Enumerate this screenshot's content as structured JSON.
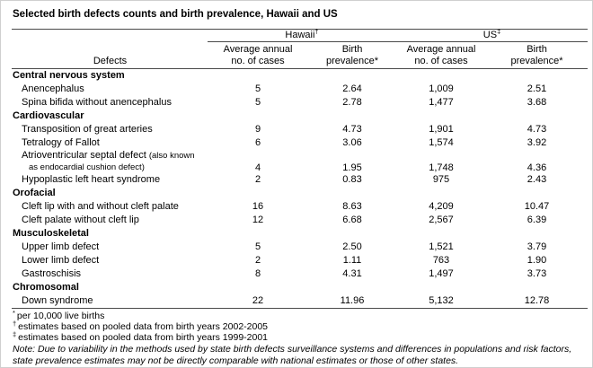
{
  "title": "Selected birth defects counts and birth prevalence, Hawaii and US",
  "table": {
    "defects_header": "Defects",
    "groups": [
      {
        "label": "Hawaii",
        "marker": "†"
      },
      {
        "label": "US",
        "marker": "‡"
      }
    ],
    "sub_headers": {
      "cases_line1": "Average annual",
      "cases_line2": "no. of cases",
      "prev_line1": "Birth",
      "prev_line2": "prevalence*"
    },
    "sections": [
      {
        "category": "Central nervous system",
        "rows": [
          {
            "defect": "Anencephalus",
            "hi_cases": "5",
            "hi_prev": "2.64",
            "us_cases": "1,009",
            "us_prev": "2.51"
          },
          {
            "defect": "Spina bifida without anencephalus",
            "hi_cases": "5",
            "hi_prev": "2.78",
            "us_cases": "1,477",
            "us_prev": "3.68"
          }
        ]
      },
      {
        "category": "Cardiovascular",
        "rows": [
          {
            "defect": "Transposition of great arteries",
            "hi_cases": "9",
            "hi_prev": "4.73",
            "us_cases": "1,901",
            "us_prev": "4.73"
          },
          {
            "defect": "Tetralogy of Fallot",
            "hi_cases": "6",
            "hi_prev": "3.06",
            "us_cases": "1,574",
            "us_prev": "3.92"
          },
          {
            "defect": "Atrioventricular septal defect",
            "note_line1": "(also known",
            "note_line2": "as endocardial cushion defect)",
            "hi_cases": "4",
            "hi_prev": "1.95",
            "us_cases": "1,748",
            "us_prev": "4.36"
          },
          {
            "defect": "Hypoplastic left heart syndrome",
            "hi_cases": "2",
            "hi_prev": "0.83",
            "us_cases": "975",
            "us_prev": "2.43"
          }
        ]
      },
      {
        "category": "Orofacial",
        "rows": [
          {
            "defect": "Cleft lip with and without cleft palate",
            "hi_cases": "16",
            "hi_prev": "8.63",
            "us_cases": "4,209",
            "us_prev": "10.47"
          },
          {
            "defect": "Cleft palate without cleft lip",
            "hi_cases": "12",
            "hi_prev": "6.68",
            "us_cases": "2,567",
            "us_prev": "6.39"
          }
        ]
      },
      {
        "category": "Musculoskeletal",
        "rows": [
          {
            "defect": "Upper limb defect",
            "hi_cases": "5",
            "hi_prev": "2.50",
            "us_cases": "1,521",
            "us_prev": "3.79"
          },
          {
            "defect": "Lower limb defect",
            "hi_cases": "2",
            "hi_prev": "1.11",
            "us_cases": "763",
            "us_prev": "1.90"
          },
          {
            "defect": "Gastroschisis",
            "hi_cases": "8",
            "hi_prev": "4.31",
            "us_cases": "1,497",
            "us_prev": "3.73"
          }
        ]
      },
      {
        "category": "Chromosomal",
        "rows": [
          {
            "defect": "Down syndrome",
            "hi_cases": "22",
            "hi_prev": "11.96",
            "us_cases": "5,132",
            "us_prev": "12.78"
          }
        ]
      }
    ]
  },
  "footnotes": [
    {
      "marker": "*",
      "text": "per 10,000 live births"
    },
    {
      "marker": "†",
      "text": "estimates based on pooled data from birth years 2002-2005"
    },
    {
      "marker": "‡",
      "text": "estimates based on pooled data from birth years 1999-2001"
    }
  ],
  "note": "Note: Due to variability in the methods used by state birth defects surveillance systems and differences in populations and risk factors, state prevalence estimates may not be directly comparable with national estimates or those of other states."
}
